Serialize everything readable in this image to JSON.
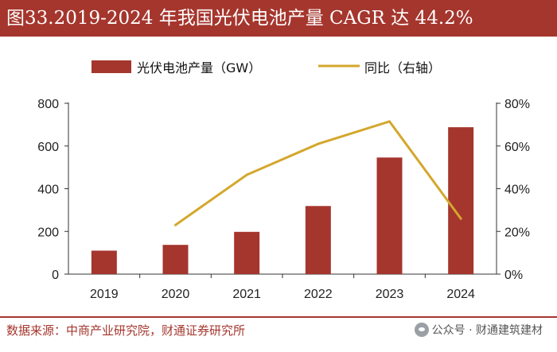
{
  "title": "图33.2019-2024 年我国光伏电池产量 CAGR 达 44.2%",
  "legend": {
    "bar_label": "光伏电池产量（GW）",
    "line_label": "同比（右轴）"
  },
  "colors": {
    "bar": "#a5362d",
    "line": "#d4a72c",
    "title_bg": "#a5362d"
  },
  "chart_data": {
    "type": "bar",
    "categories": [
      "2019",
      "2020",
      "2021",
      "2022",
      "2023",
      "2024"
    ],
    "series": [
      {
        "name": "光伏电池产量（GW）",
        "type": "bar",
        "axis": "left",
        "values": [
          110,
          137,
          198,
          319,
          546,
          688
        ]
      },
      {
        "name": "同比（右轴）",
        "type": "line",
        "axis": "right",
        "values": [
          null,
          23,
          46.5,
          61,
          71.5,
          26
        ]
      }
    ],
    "y_left": {
      "min": 0,
      "max": 800,
      "ticks": [
        0,
        200,
        400,
        600,
        800
      ],
      "tick_labels": [
        "0",
        "200",
        "400",
        "600",
        "800"
      ]
    },
    "y_right": {
      "min": 0,
      "max": 80,
      "ticks": [
        0,
        20,
        40,
        60,
        80
      ],
      "tick_labels": [
        "0%",
        "20%",
        "40%",
        "60%",
        "80%"
      ]
    },
    "title": "图33.2019-2024 年我国光伏电池产量 CAGR 达 44.2%",
    "xlabel": "",
    "ylabel": ""
  },
  "source": "数据来源：中商产业研究院，财通证券研究所",
  "watermark": "公众号 · 财通建筑建材"
}
